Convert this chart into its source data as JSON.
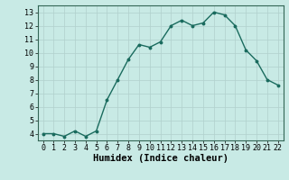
{
  "x": [
    0,
    1,
    2,
    3,
    4,
    5,
    6,
    7,
    8,
    9,
    10,
    11,
    12,
    13,
    14,
    15,
    16,
    17,
    18,
    19,
    20,
    21,
    22
  ],
  "y": [
    4.0,
    4.0,
    3.8,
    4.2,
    3.8,
    4.2,
    6.5,
    8.0,
    9.5,
    10.6,
    10.4,
    10.8,
    12.0,
    12.4,
    12.0,
    12.2,
    13.0,
    12.8,
    12.0,
    10.2,
    9.4,
    8.0,
    7.6
  ],
  "line_color": "#1a6b5e",
  "marker": "o",
  "marker_size": 1.8,
  "linewidth": 1.0,
  "xlabel": "Humidex (Indice chaleur)",
  "xlim": [
    -0.5,
    22.5
  ],
  "ylim": [
    3.5,
    13.5
  ],
  "yticks": [
    4,
    5,
    6,
    7,
    8,
    9,
    10,
    11,
    12,
    13
  ],
  "xticks": [
    0,
    1,
    2,
    3,
    4,
    5,
    6,
    7,
    8,
    9,
    10,
    11,
    12,
    13,
    14,
    15,
    16,
    17,
    18,
    19,
    20,
    21,
    22
  ],
  "bg_color": "#c8eae5",
  "grid_color": "#b0d0cc",
  "xlabel_fontsize": 7.5,
  "tick_fontsize": 6.0
}
